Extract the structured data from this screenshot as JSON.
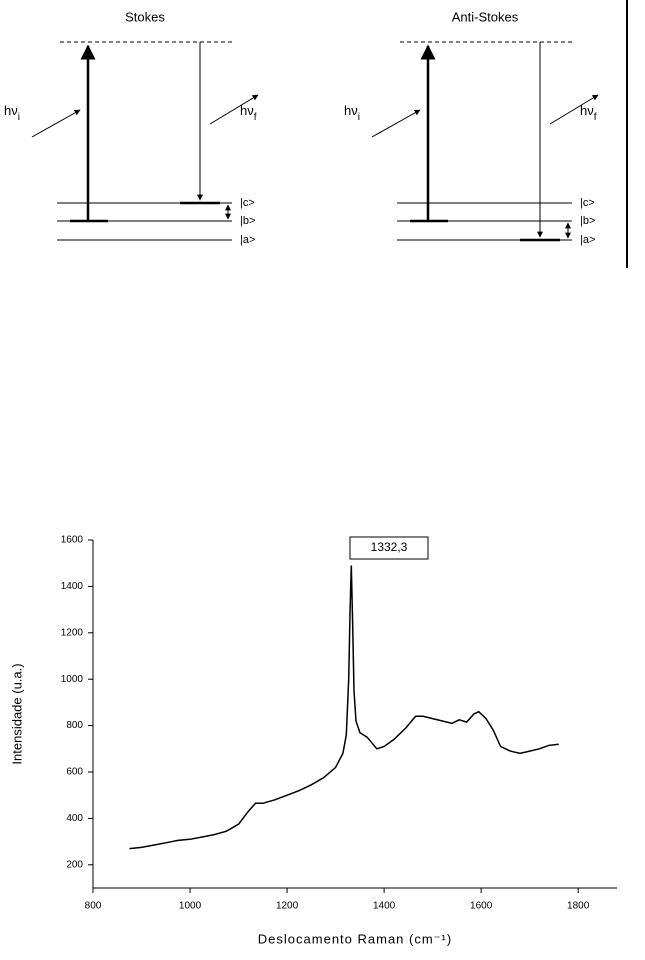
{
  "diagram": {
    "panels": [
      {
        "title": "Stokes",
        "incident": {
          "main": "hν",
          "sub": "i"
        },
        "scattered": {
          "main": "hν",
          "sub": "f"
        },
        "levels": [
          "|c>",
          "|b>",
          "|a>"
        ]
      },
      {
        "title": "Anti-Stokes",
        "incident": {
          "main": "hν",
          "sub": "i"
        },
        "scattered": {
          "main": "hν",
          "sub": "f"
        },
        "levels": [
          "|c>",
          "|b>",
          "|a>"
        ]
      }
    ]
  },
  "chart_data": {
    "type": "line",
    "annotation": "1332,3",
    "xlabel": "Deslocamento Raman (cm⁻¹)",
    "ylabel": "Intensidade (u.a.)",
    "x": [
      875,
      900,
      925,
      950,
      975,
      1000,
      1025,
      1050,
      1075,
      1100,
      1120,
      1135,
      1150,
      1175,
      1200,
      1225,
      1250,
      1275,
      1300,
      1315,
      1322,
      1327,
      1330,
      1332.3,
      1335,
      1338,
      1342,
      1350,
      1365,
      1385,
      1400,
      1420,
      1445,
      1465,
      1480,
      1500,
      1520,
      1540,
      1555,
      1570,
      1585,
      1595,
      1610,
      1625,
      1640,
      1660,
      1680,
      1700,
      1720,
      1740,
      1760
    ],
    "values": [
      270,
      275,
      285,
      295,
      305,
      310,
      320,
      330,
      345,
      375,
      430,
      465,
      465,
      480,
      500,
      520,
      545,
      575,
      620,
      680,
      760,
      1000,
      1300,
      1490,
      1250,
      950,
      820,
      770,
      750,
      700,
      710,
      740,
      790,
      840,
      840,
      830,
      820,
      810,
      825,
      815,
      850,
      860,
      830,
      780,
      710,
      690,
      680,
      690,
      700,
      715,
      720
    ],
    "color": "#000000",
    "xlim": [
      800,
      1880
    ],
    "ylim": [
      100,
      1600
    ],
    "xticks": [
      800,
      1000,
      1200,
      1400,
      1600,
      1800
    ],
    "yticks": [
      200,
      400,
      600,
      800,
      1000,
      1200,
      1400,
      1600
    ]
  }
}
